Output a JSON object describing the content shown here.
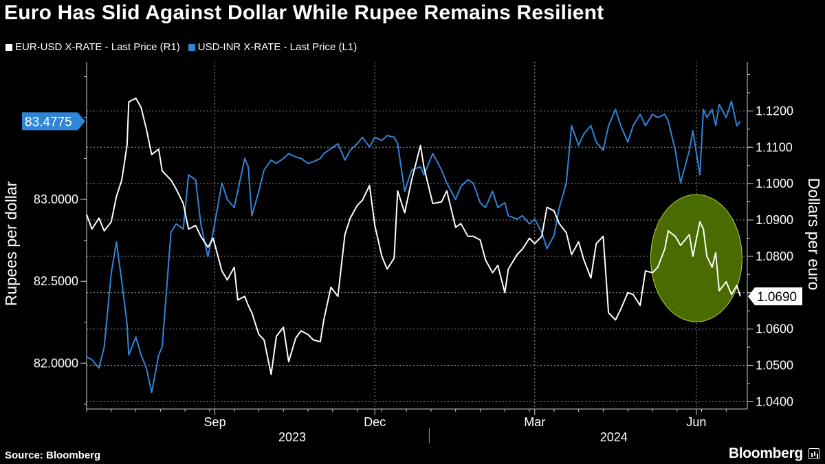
{
  "title": "Euro Has Slid Against Dollar While Rupee Remains Resilient",
  "footer": {
    "source": "Source: Bloomberg",
    "brand": "Bloomberg"
  },
  "colors": {
    "eur": "#ffffff",
    "inr": "#2f86d9",
    "highlight": "#4a6b00",
    "highlight_stroke": "#b7d93b"
  },
  "chart_data": {
    "type": "line",
    "title": "Euro Has Slid Against Dollar While Rupee Remains Resilient",
    "legend_position": "top-left",
    "grid": true,
    "x_range": [
      "2023-06-20",
      "2024-06-30"
    ],
    "x_ticks": [
      {
        "date": "2023-09-01",
        "label": "Sep"
      },
      {
        "date": "2023-12-01",
        "label": "Dec"
      },
      {
        "date": "2024-03-01",
        "label": "Mar"
      },
      {
        "date": "2024-06-01",
        "label": "Jun"
      }
    ],
    "year_labels": [
      {
        "date": "2023-10-15",
        "label": "2023"
      },
      {
        "date": "2024-04-15",
        "label": "2024"
      }
    ],
    "left_axis": {
      "label": "Rupees per dollar",
      "range": [
        81.72,
        83.84
      ],
      "ticks": [
        82.0,
        82.5,
        83.0
      ],
      "tick_labels": [
        "82.0000",
        "82.5000",
        "83.0000"
      ],
      "last_value_label": "83.4775",
      "last_value": 83.4775
    },
    "right_axis": {
      "label": "Dollars per euro",
      "range": [
        1.038,
        1.1335
      ],
      "ticks": [
        1.04,
        1.05,
        1.06,
        1.07,
        1.08,
        1.09,
        1.1,
        1.11,
        1.12
      ],
      "tick_labels": [
        "1.0400",
        "1.0500",
        "1.0600",
        "1.0700",
        "1.0800",
        "1.0900",
        "1.1000",
        "1.1100",
        "1.1200"
      ],
      "last_value_label": "1.0690",
      "last_value": 1.069
    },
    "highlight": {
      "shape": "ellipse",
      "x_range": [
        "2024-05-06",
        "2024-06-27"
      ],
      "y_range": [
        1.062,
        1.097
      ],
      "axis": "right"
    },
    "series": [
      {
        "name": "EUR-USD X-RATE - Last Price (R1)",
        "axis": "right",
        "points": [
          [
            "2023-06-20",
            1.0915
          ],
          [
            "2023-06-23",
            1.0875
          ],
          [
            "2023-06-27",
            1.0905
          ],
          [
            "2023-06-30",
            1.087
          ],
          [
            "2023-07-04",
            1.0895
          ],
          [
            "2023-07-07",
            1.0965
          ],
          [
            "2023-07-10",
            1.101
          ],
          [
            "2023-07-13",
            1.1105
          ],
          [
            "2023-07-14",
            1.1225
          ],
          [
            "2023-07-18",
            1.1235
          ],
          [
            "2023-07-21",
            1.121
          ],
          [
            "2023-07-24",
            1.115
          ],
          [
            "2023-07-27",
            1.108
          ],
          [
            "2023-07-31",
            1.1095
          ],
          [
            "2023-08-02",
            1.1035
          ],
          [
            "2023-08-07",
            1.101
          ],
          [
            "2023-08-10",
            1.0985
          ],
          [
            "2023-08-14",
            1.0945
          ],
          [
            "2023-08-17",
            1.0875
          ],
          [
            "2023-08-21",
            1.0885
          ],
          [
            "2023-08-24",
            1.0855
          ],
          [
            "2023-08-28",
            1.0825
          ],
          [
            "2023-08-31",
            1.085
          ],
          [
            "2023-09-05",
            1.076
          ],
          [
            "2023-09-08",
            1.0735
          ],
          [
            "2023-09-12",
            1.077
          ],
          [
            "2023-09-14",
            1.068
          ],
          [
            "2023-09-18",
            1.069
          ],
          [
            "2023-09-20",
            1.0665
          ],
          [
            "2023-09-22",
            1.0645
          ],
          [
            "2023-09-26",
            1.0585
          ],
          [
            "2023-09-29",
            1.057
          ],
          [
            "2023-10-03",
            1.0475
          ],
          [
            "2023-10-06",
            1.058
          ],
          [
            "2023-10-10",
            1.0605
          ],
          [
            "2023-10-13",
            1.051
          ],
          [
            "2023-10-17",
            1.0575
          ],
          [
            "2023-10-20",
            1.0595
          ],
          [
            "2023-10-24",
            1.0585
          ],
          [
            "2023-10-27",
            1.057
          ],
          [
            "2023-10-31",
            1.0565
          ],
          [
            "2023-11-02",
            1.0625
          ],
          [
            "2023-11-06",
            1.0715
          ],
          [
            "2023-11-10",
            1.069
          ],
          [
            "2023-11-14",
            1.086
          ],
          [
            "2023-11-17",
            1.0905
          ],
          [
            "2023-11-21",
            1.094
          ],
          [
            "2023-11-24",
            1.0955
          ],
          [
            "2023-11-28",
            1.0995
          ],
          [
            "2023-12-01",
            1.0885
          ],
          [
            "2023-12-05",
            1.08
          ],
          [
            "2023-12-08",
            1.0765
          ],
          [
            "2023-12-12",
            1.0795
          ],
          [
            "2023-12-14",
            1.098
          ],
          [
            "2023-12-18",
            1.092
          ],
          [
            "2023-12-22",
            1.101
          ],
          [
            "2023-12-27",
            1.1105
          ],
          [
            "2023-12-29",
            1.1045
          ],
          [
            "2024-01-03",
            1.0945
          ],
          [
            "2024-01-08",
            1.095
          ],
          [
            "2024-01-11",
            1.098
          ],
          [
            "2024-01-16",
            1.088
          ],
          [
            "2024-01-19",
            1.089
          ],
          [
            "2024-01-23",
            1.0855
          ],
          [
            "2024-01-26",
            1.0855
          ],
          [
            "2024-01-30",
            1.0845
          ],
          [
            "2024-02-02",
            1.079
          ],
          [
            "2024-02-06",
            1.0755
          ],
          [
            "2024-02-09",
            1.0775
          ],
          [
            "2024-02-13",
            1.07
          ],
          [
            "2024-02-15",
            1.0765
          ],
          [
            "2024-02-20",
            1.0805
          ],
          [
            "2024-02-23",
            1.082
          ],
          [
            "2024-02-27",
            1.085
          ],
          [
            "2024-03-01",
            1.0835
          ],
          [
            "2024-03-05",
            1.0855
          ],
          [
            "2024-03-08",
            1.0935
          ],
          [
            "2024-03-12",
            1.0925
          ],
          [
            "2024-03-15",
            1.089
          ],
          [
            "2024-03-19",
            1.0865
          ],
          [
            "2024-03-22",
            1.0805
          ],
          [
            "2024-03-26",
            1.084
          ],
          [
            "2024-03-29",
            1.079
          ],
          [
            "2024-04-02",
            1.074
          ],
          [
            "2024-04-05",
            1.0835
          ],
          [
            "2024-04-09",
            1.0855
          ],
          [
            "2024-04-12",
            1.0645
          ],
          [
            "2024-04-16",
            1.0625
          ],
          [
            "2024-04-19",
            1.0655
          ],
          [
            "2024-04-23",
            1.07
          ],
          [
            "2024-04-26",
            1.0695
          ],
          [
            "2024-04-30",
            1.0665
          ],
          [
            "2024-05-03",
            1.076
          ],
          [
            "2024-05-07",
            1.0755
          ],
          [
            "2024-05-10",
            1.077
          ],
          [
            "2024-05-14",
            1.082
          ],
          [
            "2024-05-16",
            1.087
          ],
          [
            "2024-05-20",
            1.0855
          ],
          [
            "2024-05-23",
            1.083
          ],
          [
            "2024-05-28",
            1.086
          ],
          [
            "2024-05-30",
            1.08
          ],
          [
            "2024-06-03",
            1.0895
          ],
          [
            "2024-06-05",
            1.0875
          ],
          [
            "2024-06-07",
            1.08
          ],
          [
            "2024-06-10",
            1.077
          ],
          [
            "2024-06-12",
            1.081
          ],
          [
            "2024-06-14",
            1.0705
          ],
          [
            "2024-06-18",
            1.073
          ],
          [
            "2024-06-21",
            1.0695
          ],
          [
            "2024-06-24",
            1.072
          ],
          [
            "2024-06-26",
            1.069
          ]
        ]
      },
      {
        "name": "USD-INR X-RATE - Last Price (L1)",
        "axis": "left",
        "points": [
          [
            "2023-06-20",
            82.04
          ],
          [
            "2023-06-23",
            82.02
          ],
          [
            "2023-06-27",
            81.97
          ],
          [
            "2023-06-30",
            82.1
          ],
          [
            "2023-07-04",
            82.55
          ],
          [
            "2023-07-07",
            82.74
          ],
          [
            "2023-07-10",
            82.5
          ],
          [
            "2023-07-13",
            82.24
          ],
          [
            "2023-07-14",
            82.05
          ],
          [
            "2023-07-18",
            82.16
          ],
          [
            "2023-07-21",
            82.05
          ],
          [
            "2023-07-24",
            81.97
          ],
          [
            "2023-07-27",
            81.82
          ],
          [
            "2023-07-31",
            82.05
          ],
          [
            "2023-08-02",
            82.1
          ],
          [
            "2023-08-07",
            82.8
          ],
          [
            "2023-08-10",
            82.85
          ],
          [
            "2023-08-14",
            82.82
          ],
          [
            "2023-08-17",
            83.15
          ],
          [
            "2023-08-21",
            83.12
          ],
          [
            "2023-08-24",
            82.85
          ],
          [
            "2023-08-28",
            82.65
          ],
          [
            "2023-08-31",
            82.8
          ],
          [
            "2023-09-05",
            83.1
          ],
          [
            "2023-09-08",
            83.0
          ],
          [
            "2023-09-12",
            82.95
          ],
          [
            "2023-09-14",
            83.05
          ],
          [
            "2023-09-18",
            83.25
          ],
          [
            "2023-09-20",
            83.2
          ],
          [
            "2023-09-22",
            82.9
          ],
          [
            "2023-09-26",
            83.05
          ],
          [
            "2023-09-29",
            83.18
          ],
          [
            "2023-10-03",
            83.24
          ],
          [
            "2023-10-06",
            83.22
          ],
          [
            "2023-10-10",
            83.25
          ],
          [
            "2023-10-13",
            83.28
          ],
          [
            "2023-10-17",
            83.26
          ],
          [
            "2023-10-20",
            83.25
          ],
          [
            "2023-10-24",
            83.22
          ],
          [
            "2023-10-27",
            83.23
          ],
          [
            "2023-10-31",
            83.25
          ],
          [
            "2023-11-02",
            83.28
          ],
          [
            "2023-11-06",
            83.31
          ],
          [
            "2023-11-10",
            83.34
          ],
          [
            "2023-11-14",
            83.24
          ],
          [
            "2023-11-17",
            83.3
          ],
          [
            "2023-11-21",
            83.34
          ],
          [
            "2023-11-24",
            83.38
          ],
          [
            "2023-11-28",
            83.32
          ],
          [
            "2023-12-01",
            83.38
          ],
          [
            "2023-12-05",
            83.36
          ],
          [
            "2023-12-08",
            83.39
          ],
          [
            "2023-12-12",
            83.38
          ],
          [
            "2023-12-14",
            83.34
          ],
          [
            "2023-12-18",
            83.05
          ],
          [
            "2023-12-22",
            83.18
          ],
          [
            "2023-12-27",
            83.2
          ],
          [
            "2023-12-29",
            83.15
          ],
          [
            "2024-01-03",
            83.28
          ],
          [
            "2024-01-08",
            83.18
          ],
          [
            "2024-01-11",
            83.1
          ],
          [
            "2024-01-16",
            83.0
          ],
          [
            "2024-01-19",
            83.08
          ],
          [
            "2024-01-23",
            83.12
          ],
          [
            "2024-01-26",
            83.1
          ],
          [
            "2024-01-30",
            82.98
          ],
          [
            "2024-02-02",
            82.95
          ],
          [
            "2024-02-06",
            83.05
          ],
          [
            "2024-02-09",
            82.95
          ],
          [
            "2024-02-13",
            82.98
          ],
          [
            "2024-02-15",
            82.9
          ],
          [
            "2024-02-20",
            82.88
          ],
          [
            "2024-02-23",
            82.9
          ],
          [
            "2024-02-27",
            82.85
          ],
          [
            "2024-03-01",
            82.88
          ],
          [
            "2024-03-05",
            82.8
          ],
          [
            "2024-03-08",
            82.7
          ],
          [
            "2024-03-12",
            82.78
          ],
          [
            "2024-03-15",
            82.95
          ],
          [
            "2024-03-19",
            83.1
          ],
          [
            "2024-03-22",
            83.45
          ],
          [
            "2024-03-26",
            83.33
          ],
          [
            "2024-03-29",
            83.4
          ],
          [
            "2024-04-02",
            83.45
          ],
          [
            "2024-04-05",
            83.35
          ],
          [
            "2024-04-09",
            83.3
          ],
          [
            "2024-04-12",
            83.45
          ],
          [
            "2024-04-16",
            83.55
          ],
          [
            "2024-04-19",
            83.45
          ],
          [
            "2024-04-23",
            83.35
          ],
          [
            "2024-04-26",
            83.45
          ],
          [
            "2024-04-30",
            83.52
          ],
          [
            "2024-05-03",
            83.45
          ],
          [
            "2024-05-07",
            83.52
          ],
          [
            "2024-05-10",
            83.5
          ],
          [
            "2024-05-14",
            83.52
          ],
          [
            "2024-05-16",
            83.48
          ],
          [
            "2024-05-20",
            83.3
          ],
          [
            "2024-05-23",
            83.1
          ],
          [
            "2024-05-28",
            83.3
          ],
          [
            "2024-05-30",
            83.42
          ],
          [
            "2024-06-03",
            83.15
          ],
          [
            "2024-06-05",
            83.55
          ],
          [
            "2024-06-07",
            83.5
          ],
          [
            "2024-06-10",
            83.55
          ],
          [
            "2024-06-12",
            83.45
          ],
          [
            "2024-06-14",
            83.58
          ],
          [
            "2024-06-18",
            83.5
          ],
          [
            "2024-06-21",
            83.6
          ],
          [
            "2024-06-24",
            83.45
          ],
          [
            "2024-06-26",
            83.4775
          ]
        ]
      }
    ]
  }
}
